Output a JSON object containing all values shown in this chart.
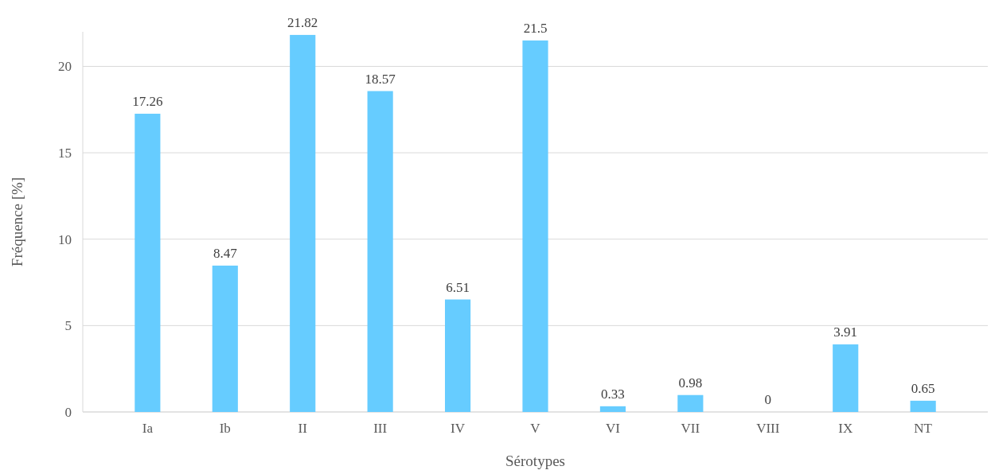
{
  "chart_data": {
    "type": "bar",
    "xlabel": "Sérotypes",
    "ylabel": "Fréquence [%]",
    "categories": [
      "Ia",
      "Ib",
      "II",
      "III",
      "IV",
      "V",
      "VI",
      "VII",
      "VIII",
      "IX",
      "NT"
    ],
    "values": [
      17.26,
      8.47,
      21.82,
      18.57,
      6.51,
      21.5,
      0.33,
      0.98,
      0,
      3.91,
      0.65
    ],
    "color": "#66ccff",
    "ylim": [
      0,
      22
    ],
    "yticks": [
      0,
      5,
      10,
      15,
      20
    ],
    "grid": "y",
    "data_labels": true
  }
}
